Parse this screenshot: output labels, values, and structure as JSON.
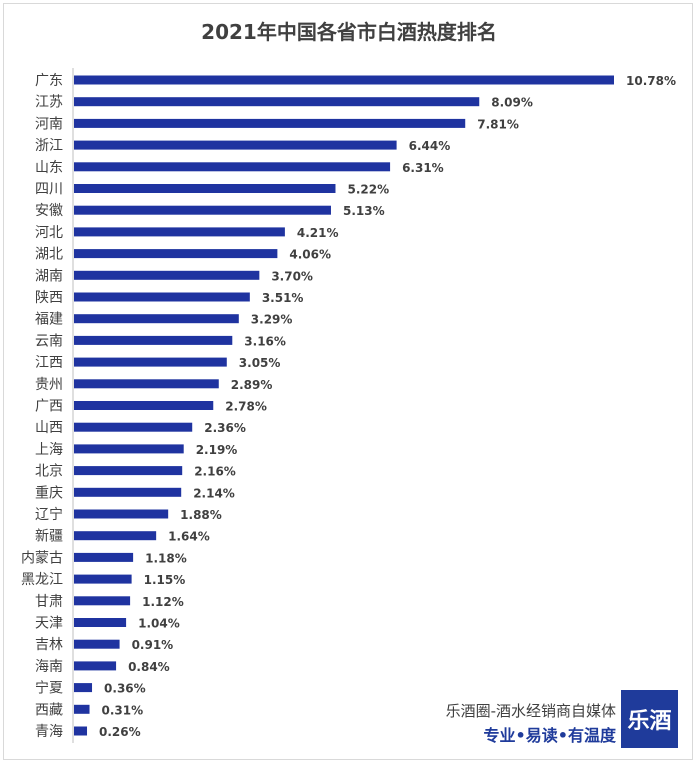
{
  "chart_data": {
    "type": "bar",
    "orientation": "horizontal",
    "title": "2021年中国各省市白酒热度排名",
    "categories": [
      "广东",
      "江苏",
      "河南",
      "浙江",
      "山东",
      "四川",
      "安徽",
      "河北",
      "湖北",
      "湖南",
      "陕西",
      "福建",
      "云南",
      "江西",
      "贵州",
      "广西",
      "山西",
      "上海",
      "北京",
      "重庆",
      "辽宁",
      "新疆",
      "内蒙古",
      "黑龙江",
      "甘肃",
      "天津",
      "吉林",
      "海南",
      "宁夏",
      "西藏",
      "青海"
    ],
    "values": [
      10.78,
      8.09,
      7.81,
      6.44,
      6.31,
      5.22,
      5.13,
      4.21,
      4.06,
      3.7,
      3.51,
      3.29,
      3.16,
      3.05,
      2.89,
      2.78,
      2.36,
      2.19,
      2.16,
      2.14,
      1.88,
      1.64,
      1.18,
      1.15,
      1.12,
      1.04,
      0.91,
      0.84,
      0.36,
      0.31,
      0.26
    ],
    "value_format": "percent",
    "grid": false,
    "bar_color": "#1f33a0"
  },
  "watermark": {
    "line1": "乐酒圈-酒水经销商自媒体",
    "line2": "专业•易读•有温度",
    "logo_text": "乐酒",
    "brand_color": "#1f3b9b"
  }
}
